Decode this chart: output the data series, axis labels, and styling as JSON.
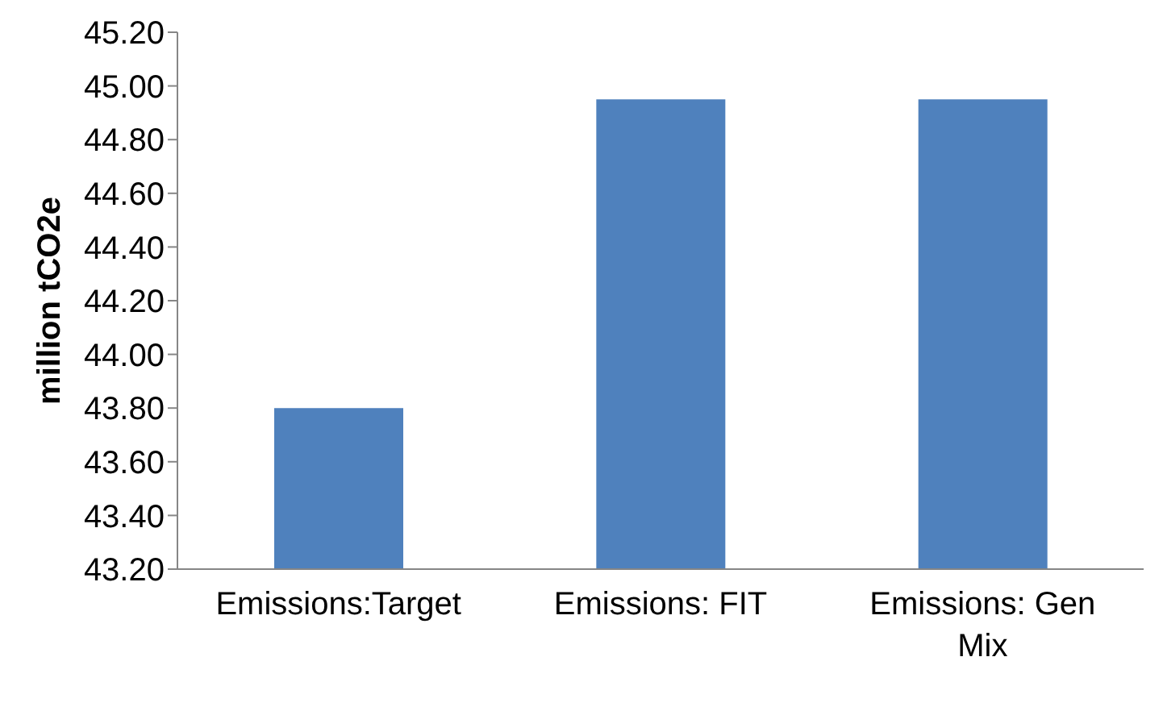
{
  "chart_data": {
    "type": "bar",
    "categories": [
      "Emissions:Target",
      "Emissions: FIT",
      "Emissions: Gen Mix"
    ],
    "values": [
      43.8,
      44.95,
      44.95
    ],
    "color": "#4f81bd",
    "ylabel": "million tCO2e",
    "ylim": [
      43.2,
      45.2
    ],
    "yticks": [
      {
        "value": 43.2,
        "label": "43.20"
      },
      {
        "value": 43.4,
        "label": "43.40"
      },
      {
        "value": 43.6,
        "label": "43.60"
      },
      {
        "value": 43.8,
        "label": "43.80"
      },
      {
        "value": 44.0,
        "label": "44.00"
      },
      {
        "value": 44.2,
        "label": "44.20"
      },
      {
        "value": 44.4,
        "label": "44.40"
      },
      {
        "value": 44.6,
        "label": "44.60"
      },
      {
        "value": 44.8,
        "label": "44.80"
      },
      {
        "value": 45.0,
        "label": "45.00"
      },
      {
        "value": 45.2,
        "label": "45.20"
      }
    ],
    "grid": false,
    "legend": false
  }
}
